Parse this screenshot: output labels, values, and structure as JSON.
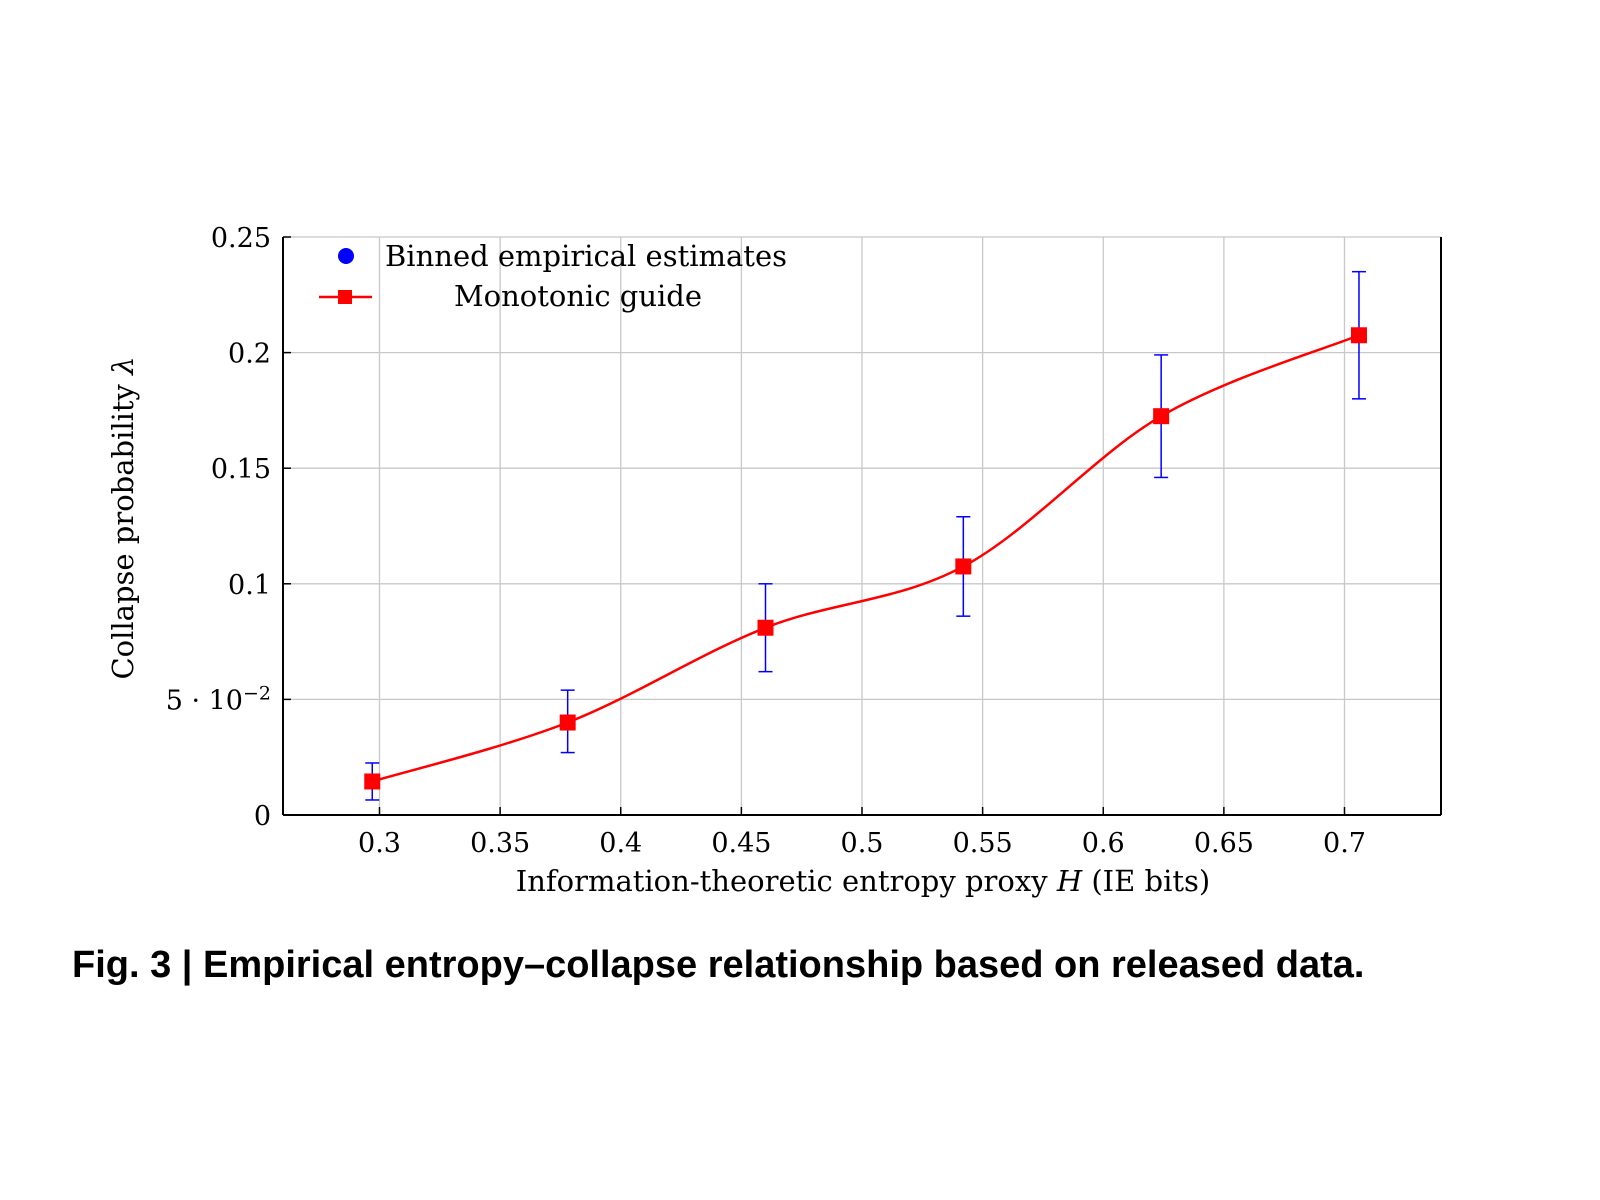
{
  "chart_data": {
    "type": "line",
    "xlabel": "Information-theoretic entropy proxy",
    "xlabel_symbol": "H",
    "xlabel_unit": "(IE bits)",
    "ylabel": "Collapse probability",
    "ylabel_symbol": "λ",
    "xlim": [
      0.26,
      0.74
    ],
    "ylim": [
      0,
      0.25
    ],
    "x_ticks": [
      0.3,
      0.35,
      0.4,
      0.45,
      0.5,
      0.55,
      0.6,
      0.65,
      0.7
    ],
    "x_tick_labels": [
      "0.3",
      "0.35",
      "0.4",
      "0.45",
      "0.5",
      "0.55",
      "0.6",
      "0.65",
      "0.7"
    ],
    "y_ticks": [
      0,
      0.05,
      0.1,
      0.15,
      0.2,
      0.25
    ],
    "y_tick_labels": [
      "0",
      "5 · 10",
      "0.1",
      "0.15",
      "0.2",
      "0.25"
    ],
    "y_tick_exponent": "−2",
    "grid": true,
    "legend_position": "top-left",
    "series": [
      {
        "name": "Binned empirical estimates",
        "kind": "scatter-errorbar",
        "color": "#0000ff",
        "x": [
          0.297,
          0.378,
          0.46,
          0.542,
          0.624,
          0.706
        ],
        "y": [
          0.0145,
          0.04,
          0.081,
          0.1075,
          0.1725,
          0.2075
        ],
        "err_low": [
          0.0065,
          0.027,
          0.062,
          0.086,
          0.146,
          0.18
        ],
        "err_high": [
          0.0225,
          0.054,
          0.1,
          0.129,
          0.199,
          0.235
        ]
      },
      {
        "name": "Monotonic guide",
        "kind": "line-square",
        "color": "#ff0000",
        "x": [
          0.297,
          0.378,
          0.46,
          0.542,
          0.624,
          0.706
        ],
        "y": [
          0.0145,
          0.04,
          0.081,
          0.1075,
          0.1725,
          0.2075
        ]
      }
    ]
  },
  "caption": "Fig. 3 | Empirical entropy–collapse relationship based on released data."
}
